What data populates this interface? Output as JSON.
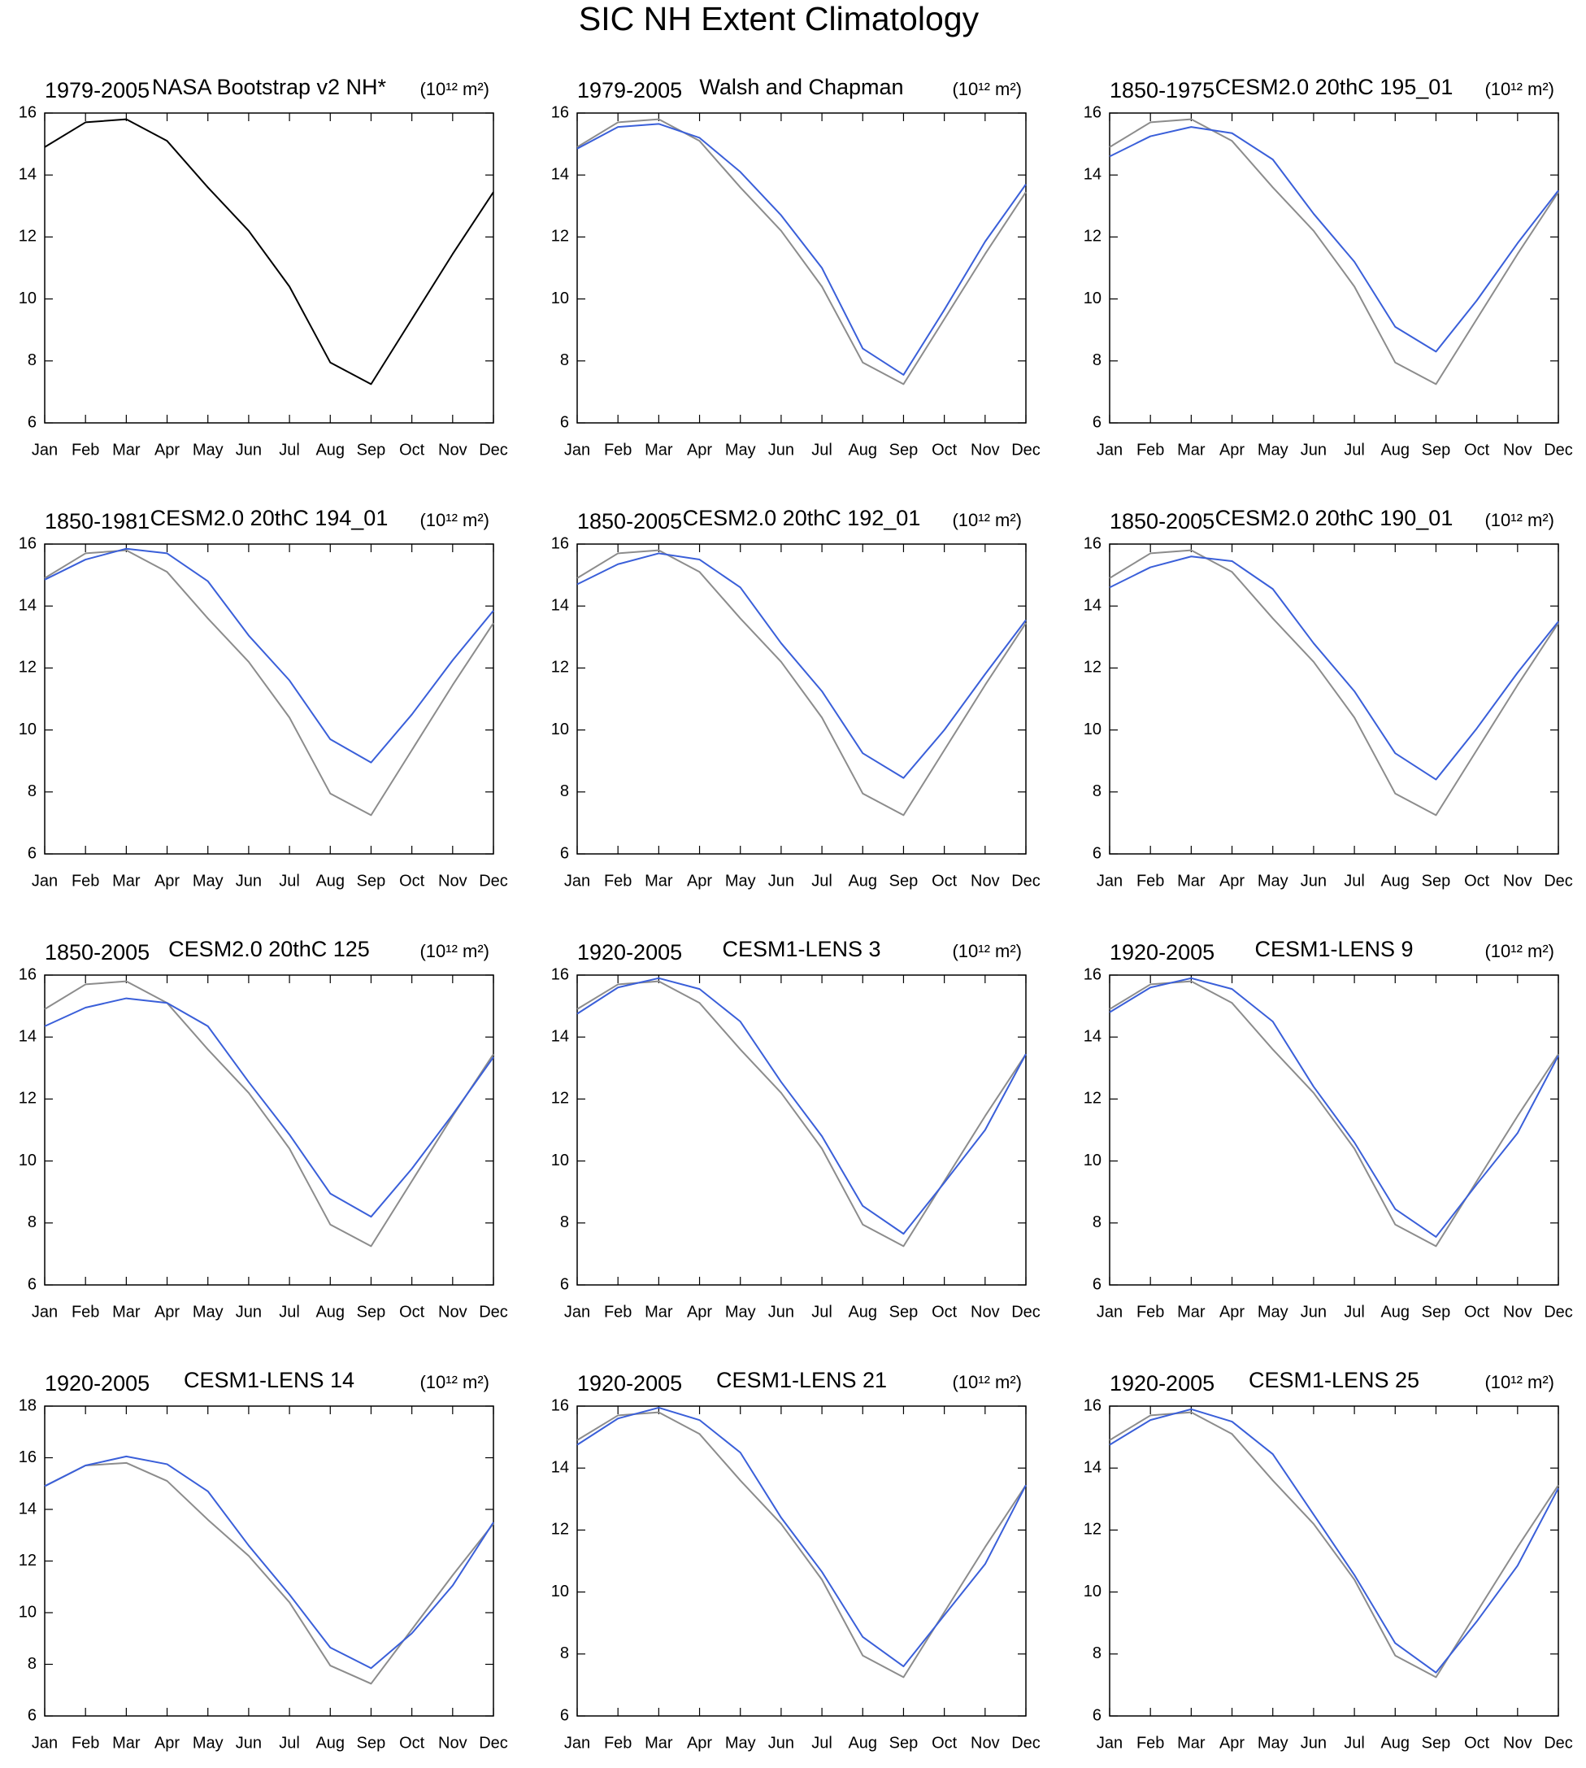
{
  "title": "SIC NH Extent Climatology",
  "chart_data": [
    {
      "type": "line",
      "period": "1979-2005",
      "title": "NASA Bootstrap v2 NH*",
      "units": "(10¹² m²)",
      "categories": [
        "Jan",
        "Feb",
        "Mar",
        "Apr",
        "May",
        "Jun",
        "Jul",
        "Aug",
        "Sep",
        "Oct",
        "Nov",
        "Dec"
      ],
      "series": [
        {
          "color": "#000000",
          "values": [
            14.9,
            15.7,
            15.8,
            15.1,
            13.6,
            12.2,
            10.4,
            7.95,
            7.25,
            9.35,
            11.45,
            13.45
          ]
        }
      ],
      "ylim": [
        6,
        16
      ],
      "yticks": [
        6,
        8,
        10,
        12,
        14,
        16
      ]
    },
    {
      "type": "line",
      "period": "1979-2005",
      "title": "Walsh and Chapman",
      "units": "(10¹² m²)",
      "categories": [
        "Jan",
        "Feb",
        "Mar",
        "Apr",
        "May",
        "Jun",
        "Jul",
        "Aug",
        "Sep",
        "Oct",
        "Nov",
        "Dec"
      ],
      "series": [
        {
          "color": "#8c8c8c",
          "values": [
            14.9,
            15.7,
            15.8,
            15.1,
            13.6,
            12.2,
            10.4,
            7.95,
            7.25,
            9.35,
            11.45,
            13.45
          ]
        },
        {
          "color": "#3a5fd9",
          "values": [
            14.85,
            15.55,
            15.65,
            15.2,
            14.1,
            12.7,
            11.0,
            8.4,
            7.55,
            9.65,
            11.85,
            13.7
          ]
        }
      ],
      "ylim": [
        6,
        16
      ],
      "yticks": [
        6,
        8,
        10,
        12,
        14,
        16
      ]
    },
    {
      "type": "line",
      "period": "1850-1975",
      "title": "CESM2.0 20thC 195_01",
      "units": "(10¹² m²)",
      "categories": [
        "Jan",
        "Feb",
        "Mar",
        "Apr",
        "May",
        "Jun",
        "Jul",
        "Aug",
        "Sep",
        "Oct",
        "Nov",
        "Dec"
      ],
      "series": [
        {
          "color": "#8c8c8c",
          "values": [
            14.9,
            15.7,
            15.8,
            15.1,
            13.6,
            12.2,
            10.4,
            7.95,
            7.25,
            9.35,
            11.45,
            13.45
          ]
        },
        {
          "color": "#3a5fd9",
          "values": [
            14.6,
            15.25,
            15.55,
            15.35,
            14.5,
            12.75,
            11.2,
            9.1,
            8.3,
            9.95,
            11.8,
            13.5
          ]
        }
      ],
      "ylim": [
        6,
        16
      ],
      "yticks": [
        6,
        8,
        10,
        12,
        14,
        16
      ]
    },
    {
      "type": "line",
      "period": "1850-1981",
      "title": "CESM2.0 20thC 194_01",
      "units": "(10¹² m²)",
      "categories": [
        "Jan",
        "Feb",
        "Mar",
        "Apr",
        "May",
        "Jun",
        "Jul",
        "Aug",
        "Sep",
        "Oct",
        "Nov",
        "Dec"
      ],
      "series": [
        {
          "color": "#8c8c8c",
          "values": [
            14.9,
            15.7,
            15.8,
            15.1,
            13.6,
            12.2,
            10.4,
            7.95,
            7.25,
            9.35,
            11.45,
            13.45
          ]
        },
        {
          "color": "#3a5fd9",
          "values": [
            14.85,
            15.5,
            15.85,
            15.7,
            14.8,
            13.05,
            11.6,
            9.7,
            8.95,
            10.5,
            12.25,
            13.85
          ]
        }
      ],
      "ylim": [
        6,
        16
      ],
      "yticks": [
        6,
        8,
        10,
        12,
        14,
        16
      ]
    },
    {
      "type": "line",
      "period": "1850-2005",
      "title": "CESM2.0 20thC 192_01",
      "units": "(10¹² m²)",
      "categories": [
        "Jan",
        "Feb",
        "Mar",
        "Apr",
        "May",
        "Jun",
        "Jul",
        "Aug",
        "Sep",
        "Oct",
        "Nov",
        "Dec"
      ],
      "series": [
        {
          "color": "#8c8c8c",
          "values": [
            14.9,
            15.7,
            15.8,
            15.1,
            13.6,
            12.2,
            10.4,
            7.95,
            7.25,
            9.35,
            11.45,
            13.45
          ]
        },
        {
          "color": "#3a5fd9",
          "values": [
            14.7,
            15.35,
            15.7,
            15.5,
            14.6,
            12.8,
            11.25,
            9.25,
            8.45,
            10.0,
            11.8,
            13.55
          ]
        }
      ],
      "ylim": [
        6,
        16
      ],
      "yticks": [
        6,
        8,
        10,
        12,
        14,
        16
      ]
    },
    {
      "type": "line",
      "period": "1850-2005",
      "title": "CESM2.0 20thC 190_01",
      "units": "(10¹² m²)",
      "categories": [
        "Jan",
        "Feb",
        "Mar",
        "Apr",
        "May",
        "Jun",
        "Jul",
        "Aug",
        "Sep",
        "Oct",
        "Nov",
        "Dec"
      ],
      "series": [
        {
          "color": "#8c8c8c",
          "values": [
            14.9,
            15.7,
            15.8,
            15.1,
            13.6,
            12.2,
            10.4,
            7.95,
            7.25,
            9.35,
            11.45,
            13.45
          ]
        },
        {
          "color": "#3a5fd9",
          "values": [
            14.6,
            15.25,
            15.6,
            15.45,
            14.55,
            12.8,
            11.25,
            9.25,
            8.4,
            10.05,
            11.85,
            13.5
          ]
        }
      ],
      "ylim": [
        6,
        16
      ],
      "yticks": [
        6,
        8,
        10,
        12,
        14,
        16
      ]
    },
    {
      "type": "line",
      "period": "1850-2005",
      "title": "CESM2.0 20thC 125",
      "units": "(10¹² m²)",
      "categories": [
        "Jan",
        "Feb",
        "Mar",
        "Apr",
        "May",
        "Jun",
        "Jul",
        "Aug",
        "Sep",
        "Oct",
        "Nov",
        "Dec"
      ],
      "series": [
        {
          "color": "#8c8c8c",
          "values": [
            14.9,
            15.7,
            15.8,
            15.1,
            13.6,
            12.2,
            10.4,
            7.95,
            7.25,
            9.35,
            11.45,
            13.45
          ]
        },
        {
          "color": "#3a5fd9",
          "values": [
            14.35,
            14.95,
            15.25,
            15.1,
            14.35,
            12.55,
            10.85,
            8.95,
            8.2,
            9.75,
            11.5,
            13.35
          ]
        }
      ],
      "ylim": [
        6,
        16
      ],
      "yticks": [
        6,
        8,
        10,
        12,
        14,
        16
      ]
    },
    {
      "type": "line",
      "period": "1920-2005",
      "title": "CESM1-LENS 3",
      "units": "(10¹² m²)",
      "categories": [
        "Jan",
        "Feb",
        "Mar",
        "Apr",
        "May",
        "Jun",
        "Jul",
        "Aug",
        "Sep",
        "Oct",
        "Nov",
        "Dec"
      ],
      "series": [
        {
          "color": "#8c8c8c",
          "values": [
            14.9,
            15.7,
            15.8,
            15.1,
            13.6,
            12.2,
            10.4,
            7.95,
            7.25,
            9.35,
            11.45,
            13.45
          ]
        },
        {
          "color": "#3a5fd9",
          "values": [
            14.75,
            15.6,
            15.9,
            15.55,
            14.5,
            12.55,
            10.8,
            8.55,
            7.65,
            9.3,
            11.0,
            13.45
          ]
        }
      ],
      "ylim": [
        6,
        16
      ],
      "yticks": [
        6,
        8,
        10,
        12,
        14,
        16
      ]
    },
    {
      "type": "line",
      "period": "1920-2005",
      "title": "CESM1-LENS 9",
      "units": "(10¹² m²)",
      "categories": [
        "Jan",
        "Feb",
        "Mar",
        "Apr",
        "May",
        "Jun",
        "Jul",
        "Aug",
        "Sep",
        "Oct",
        "Nov",
        "Dec"
      ],
      "series": [
        {
          "color": "#8c8c8c",
          "values": [
            14.9,
            15.7,
            15.8,
            15.1,
            13.6,
            12.2,
            10.4,
            7.95,
            7.25,
            9.35,
            11.45,
            13.45
          ]
        },
        {
          "color": "#3a5fd9",
          "values": [
            14.8,
            15.6,
            15.9,
            15.55,
            14.5,
            12.4,
            10.6,
            8.45,
            7.55,
            9.25,
            10.9,
            13.4
          ]
        }
      ],
      "ylim": [
        6,
        16
      ],
      "yticks": [
        6,
        8,
        10,
        12,
        14,
        16
      ]
    },
    {
      "type": "line",
      "period": "1920-2005",
      "title": "CESM1-LENS 14",
      "units": "(10¹² m²)",
      "categories": [
        "Jan",
        "Feb",
        "Mar",
        "Apr",
        "May",
        "Jun",
        "Jul",
        "Aug",
        "Sep",
        "Oct",
        "Nov",
        "Dec"
      ],
      "series": [
        {
          "color": "#8c8c8c",
          "values": [
            14.9,
            15.7,
            15.8,
            15.1,
            13.6,
            12.2,
            10.4,
            7.95,
            7.25,
            9.35,
            11.45,
            13.45
          ]
        },
        {
          "color": "#3a5fd9",
          "values": [
            14.9,
            15.7,
            16.05,
            15.75,
            14.7,
            12.6,
            10.7,
            8.65,
            7.85,
            9.2,
            11.05,
            13.5
          ]
        }
      ],
      "ylim": [
        6,
        18
      ],
      "yticks": [
        6,
        8,
        10,
        12,
        14,
        16,
        18
      ]
    },
    {
      "type": "line",
      "period": "1920-2005",
      "title": "CESM1-LENS 21",
      "units": "(10¹² m²)",
      "categories": [
        "Jan",
        "Feb",
        "Mar",
        "Apr",
        "May",
        "Jun",
        "Jul",
        "Aug",
        "Sep",
        "Oct",
        "Nov",
        "Dec"
      ],
      "series": [
        {
          "color": "#8c8c8c",
          "values": [
            14.9,
            15.7,
            15.8,
            15.1,
            13.6,
            12.2,
            10.4,
            7.95,
            7.25,
            9.35,
            11.45,
            13.45
          ]
        },
        {
          "color": "#3a5fd9",
          "values": [
            14.75,
            15.6,
            15.95,
            15.55,
            14.5,
            12.4,
            10.65,
            8.55,
            7.6,
            9.25,
            10.9,
            13.45
          ]
        }
      ],
      "ylim": [
        6,
        16
      ],
      "yticks": [
        6,
        8,
        10,
        12,
        14,
        16
      ]
    },
    {
      "type": "line",
      "period": "1920-2005",
      "title": "CESM1-LENS 25",
      "units": "(10¹² m²)",
      "categories": [
        "Jan",
        "Feb",
        "Mar",
        "Apr",
        "May",
        "Jun",
        "Jul",
        "Aug",
        "Sep",
        "Oct",
        "Nov",
        "Dec"
      ],
      "series": [
        {
          "color": "#8c8c8c",
          "values": [
            14.9,
            15.7,
            15.8,
            15.1,
            13.6,
            12.2,
            10.4,
            7.95,
            7.25,
            9.35,
            11.45,
            13.45
          ]
        },
        {
          "color": "#3a5fd9",
          "values": [
            14.75,
            15.55,
            15.9,
            15.5,
            14.45,
            12.5,
            10.55,
            8.35,
            7.4,
            9.05,
            10.85,
            13.35
          ]
        }
      ],
      "ylim": [
        6,
        16
      ],
      "yticks": [
        6,
        8,
        10,
        12,
        14,
        16
      ]
    }
  ]
}
